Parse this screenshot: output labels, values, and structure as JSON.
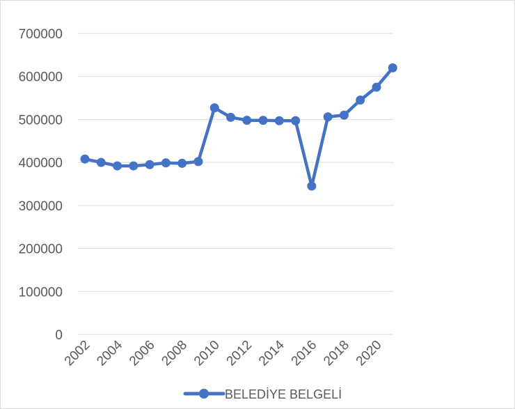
{
  "chart_data": {
    "type": "line",
    "x": [
      2002,
      2003,
      2004,
      2005,
      2006,
      2007,
      2008,
      2009,
      2010,
      2011,
      2012,
      2013,
      2014,
      2015,
      2016,
      2017,
      2018,
      2019,
      2020,
      2021
    ],
    "x_tick_labels": [
      "2002",
      "2004",
      "2006",
      "2008",
      "2010",
      "2012",
      "2014",
      "2016",
      "2018",
      "2020"
    ],
    "y_tick_labels": [
      "0",
      "100000",
      "200000",
      "300000",
      "400000",
      "500000",
      "600000",
      "700000"
    ],
    "series": [
      {
        "name": "BELEDİYE BELGELİ",
        "color": "#4472c4",
        "values": [
          408000,
          400000,
          392000,
          392000,
          395000,
          399000,
          398000,
          402000,
          527000,
          505000,
          498000,
          498000,
          497000,
          497000,
          345000,
          506000,
          510000,
          545000,
          575000,
          620000
        ]
      }
    ],
    "ylim": [
      0,
      700000
    ],
    "grid": true,
    "legend": "bottom",
    "title": "",
    "xlabel": "",
    "ylabel": ""
  }
}
